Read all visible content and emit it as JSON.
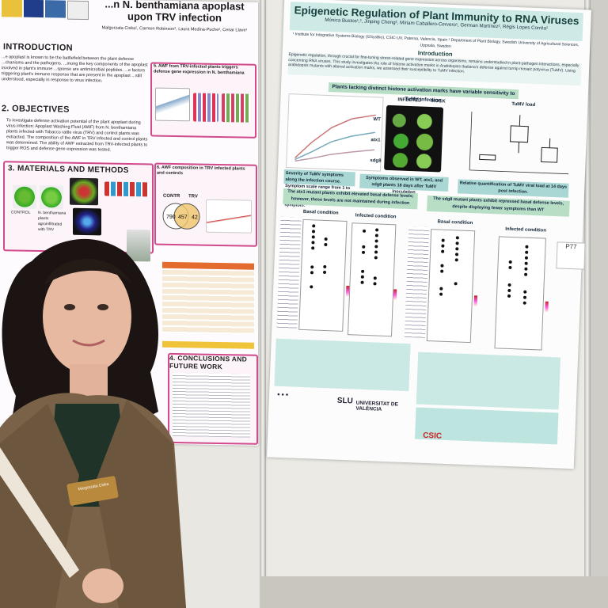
{
  "left_poster": {
    "title": "...n N. benthamiana apoplast upon TRV infection",
    "authors": "Malgorzata Ciska¹, Carmen Robinson², Laura Medina-Puche², Cesar Llave¹",
    "sections": {
      "introduction": "INTRODUCTION",
      "objectives": "2. OBJECTIVES",
      "methods": "3. MATERIALS AND METHODS",
      "awf_trv": "5. AWF from TRV-infected plants triggers defense gene expression in N. benthamiana",
      "awf_comp": "6. AWF composition in TRV infected plants and controls",
      "conclusions": "4. CONCLUSIONS AND FUTURE WORK"
    },
    "intro_text": "...e apoplast is known to be the battlefield between the plant defense ...chanisms and the pathogens. ...mong the key components of the apoplast involved in plant's immune ...sponse are antimicrobial peptides. ...e factors triggering plant's immune response that are present in the apoplast ...still understood, especially in response to virus infection.",
    "objectives_text": "To investigate defense activation potential of the plant apoplast during virus infection: Apoplast Washing Fluid (AWF) from N. benthamiana plants infected with Tobacco rattle virus (TRV) and control plants was extracted. The composition of the AWF in TRV infected and control plants was determined. The ability of AWF extracted from TRV-infected plants to trigger ROS and defense gene expression was tested.",
    "methods_labels": [
      "CONTROL",
      "N. benthamiana plants agroinfiltrated with TRV"
    ],
    "venn": {
      "left_label": "CONTR",
      "right_label": "TRV",
      "left": "790",
      "center": "457",
      "right": "42"
    }
  },
  "right_poster": {
    "title": "Epigenetic Regulation of Plant Immunity to RNA Viruses",
    "authors": "Mónica Bustos¹,², Jinping Cheng², Miriam Caballero-Cervero¹, German Martínez², Régis Lopes Corrêa¹",
    "affiliations": "¹ Institute for Integrative Systems Biology (I2SysBio), CSIC-UV, Paterna, Valencia, Spain  ² Department of Plant Biology, Swedish University of Agricultural Sciences, Uppsala, Sweden",
    "intro_heading": "Introduction",
    "intro_text": "Epigenetic regulation, through crucial for fine-tuning stress-related gene expression across organisms, remains understudied in plant-pathogen interactions, especially concerning RNA viruses. This study investigates the role of histone activation marks in Arabidopsis thaliana's defense against turnip mosaic potyvirus (TuMV). Using arabidopsis mutants with altered activation marks, we assessed their susceptibility to TuMV infection.",
    "bar_1": "Plants lacking distinct histone activation marks have variable sensitivity to TuMV infection",
    "col_labels": [
      "INFECTED",
      "MOCK",
      "TuMV load"
    ],
    "row_labels": [
      "WT",
      "atx1",
      "sdg8"
    ],
    "caption_a": "Severity of TuMV symptoms along the infection course. Symptom scale range from 1 to 6, with the highest level representing the worst symptom.",
    "caption_b": "Symptoms observed in WT, atx1, and sdg8 plants 18 days after TuMV inoculation",
    "caption_c": "Relative quantification of TuMV viral load at 14 days post infection.",
    "bar_2": "The atx1 mutant plants exhibit elevated basal defense levels; however, these levels are not maintained during infection",
    "bar_3": "The sdg8 mutant plants exhibit repressed basal defense levels, despite displaying fewer symptoms than WT",
    "basal": "Basal condition",
    "infected": "Infected condition",
    "logos": [
      "SLU",
      "UNIVERSITAT DE VALÈNCIA",
      "CSIC"
    ],
    "sticker": "P77"
  },
  "name_badge": "Margorzata Ciska"
}
